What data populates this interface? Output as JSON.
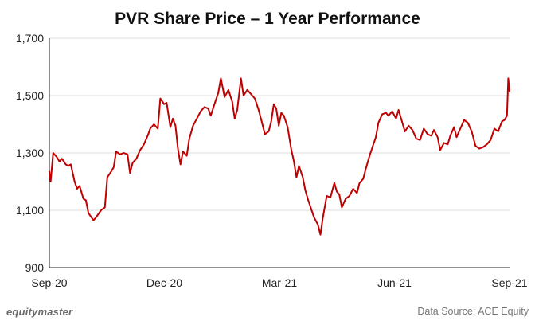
{
  "chart_data": {
    "type": "line",
    "title": "PVR Share Price – 1 Year Performance",
    "xlabel": "",
    "ylabel": "",
    "x_ticks": [
      "Sep-20",
      "Dec-20",
      "Mar-21",
      "Jun-21",
      "Sep-21"
    ],
    "y_ticks": [
      "900",
      "1,100",
      "1,300",
      "1,500",
      "1,700"
    ],
    "ylim": [
      900,
      1700
    ],
    "xlim": [
      "2020-09-01",
      "2021-09-01"
    ],
    "grid": "horizontal",
    "series": [
      {
        "color": "#c00000",
        "points": [
          [
            "2020-09-01",
            1235
          ],
          [
            "2020-09-02",
            1200
          ],
          [
            "2020-09-04",
            1300
          ],
          [
            "2020-09-07",
            1285
          ],
          [
            "2020-09-09",
            1270
          ],
          [
            "2020-09-11",
            1280
          ],
          [
            "2020-09-14",
            1260
          ],
          [
            "2020-09-16",
            1255
          ],
          [
            "2020-09-18",
            1260
          ],
          [
            "2020-09-21",
            1200
          ],
          [
            "2020-09-23",
            1175
          ],
          [
            "2020-09-25",
            1185
          ],
          [
            "2020-09-28",
            1140
          ],
          [
            "2020-09-30",
            1135
          ],
          [
            "2020-10-02",
            1090
          ],
          [
            "2020-10-06",
            1065
          ],
          [
            "2020-10-08",
            1075
          ],
          [
            "2020-10-12",
            1100
          ],
          [
            "2020-10-15",
            1110
          ],
          [
            "2020-10-17",
            1215
          ],
          [
            "2020-10-20",
            1235
          ],
          [
            "2020-10-22",
            1250
          ],
          [
            "2020-10-24",
            1305
          ],
          [
            "2020-10-27",
            1295
          ],
          [
            "2020-10-30",
            1300
          ],
          [
            "2020-11-02",
            1295
          ],
          [
            "2020-11-04",
            1230
          ],
          [
            "2020-11-06",
            1265
          ],
          [
            "2020-11-09",
            1280
          ],
          [
            "2020-11-12",
            1310
          ],
          [
            "2020-11-15",
            1330
          ],
          [
            "2020-11-18",
            1360
          ],
          [
            "2020-11-20",
            1385
          ],
          [
            "2020-11-23",
            1400
          ],
          [
            "2020-11-26",
            1385
          ],
          [
            "2020-11-28",
            1490
          ],
          [
            "2020-12-01",
            1470
          ],
          [
            "2020-12-03",
            1475
          ],
          [
            "2020-12-06",
            1390
          ],
          [
            "2020-12-08",
            1420
          ],
          [
            "2020-12-10",
            1395
          ],
          [
            "2020-12-12",
            1315
          ],
          [
            "2020-12-14",
            1260
          ],
          [
            "2020-12-16",
            1305
          ],
          [
            "2020-12-19",
            1290
          ],
          [
            "2020-12-21",
            1350
          ],
          [
            "2020-12-24",
            1395
          ],
          [
            "2020-12-27",
            1420
          ],
          [
            "2020-12-30",
            1445
          ],
          [
            "2021-01-02",
            1460
          ],
          [
            "2021-01-05",
            1455
          ],
          [
            "2021-01-07",
            1430
          ],
          [
            "2021-01-10",
            1470
          ],
          [
            "2021-01-13",
            1510
          ],
          [
            "2021-01-15",
            1560
          ],
          [
            "2021-01-18",
            1495
          ],
          [
            "2021-01-21",
            1520
          ],
          [
            "2021-01-24",
            1480
          ],
          [
            "2021-01-26",
            1420
          ],
          [
            "2021-01-28",
            1450
          ],
          [
            "2021-01-31",
            1560
          ],
          [
            "2021-02-02",
            1500
          ],
          [
            "2021-02-05",
            1520
          ],
          [
            "2021-02-08",
            1505
          ],
          [
            "2021-02-11",
            1490
          ],
          [
            "2021-02-14",
            1450
          ],
          [
            "2021-02-17",
            1400
          ],
          [
            "2021-02-19",
            1365
          ],
          [
            "2021-02-22",
            1375
          ],
          [
            "2021-02-24",
            1410
          ],
          [
            "2021-02-26",
            1470
          ],
          [
            "2021-02-28",
            1455
          ],
          [
            "2021-03-02",
            1395
          ],
          [
            "2021-03-04",
            1440
          ],
          [
            "2021-03-06",
            1430
          ],
          [
            "2021-03-09",
            1390
          ],
          [
            "2021-03-12",
            1310
          ],
          [
            "2021-03-14",
            1270
          ],
          [
            "2021-03-16",
            1215
          ],
          [
            "2021-03-18",
            1255
          ],
          [
            "2021-03-21",
            1215
          ],
          [
            "2021-03-23",
            1170
          ],
          [
            "2021-03-25",
            1140
          ],
          [
            "2021-03-28",
            1100
          ],
          [
            "2021-03-30",
            1075
          ],
          [
            "2021-04-02",
            1050
          ],
          [
            "2021-04-04",
            1015
          ],
          [
            "2021-04-06",
            1075
          ],
          [
            "2021-04-09",
            1150
          ],
          [
            "2021-04-12",
            1145
          ],
          [
            "2021-04-15",
            1195
          ],
          [
            "2021-04-17",
            1165
          ],
          [
            "2021-04-19",
            1155
          ],
          [
            "2021-04-21",
            1110
          ],
          [
            "2021-04-24",
            1140
          ],
          [
            "2021-04-27",
            1150
          ],
          [
            "2021-04-30",
            1175
          ],
          [
            "2021-05-03",
            1160
          ],
          [
            "2021-05-05",
            1195
          ],
          [
            "2021-05-08",
            1210
          ],
          [
            "2021-05-10",
            1245
          ],
          [
            "2021-05-13",
            1290
          ],
          [
            "2021-05-16",
            1330
          ],
          [
            "2021-05-18",
            1355
          ],
          [
            "2021-05-20",
            1405
          ],
          [
            "2021-05-23",
            1435
          ],
          [
            "2021-05-26",
            1440
          ],
          [
            "2021-05-28",
            1430
          ],
          [
            "2021-05-31",
            1445
          ],
          [
            "2021-06-03",
            1420
          ],
          [
            "2021-06-05",
            1450
          ],
          [
            "2021-06-08",
            1405
          ],
          [
            "2021-06-10",
            1375
          ],
          [
            "2021-06-13",
            1395
          ],
          [
            "2021-06-16",
            1380
          ],
          [
            "2021-06-19",
            1350
          ],
          [
            "2021-06-22",
            1345
          ],
          [
            "2021-06-25",
            1385
          ],
          [
            "2021-06-28",
            1365
          ],
          [
            "2021-07-01",
            1360
          ],
          [
            "2021-07-03",
            1380
          ],
          [
            "2021-07-06",
            1355
          ],
          [
            "2021-07-08",
            1310
          ],
          [
            "2021-07-11",
            1335
          ],
          [
            "2021-07-14",
            1330
          ],
          [
            "2021-07-16",
            1360
          ],
          [
            "2021-07-19",
            1390
          ],
          [
            "2021-07-21",
            1355
          ],
          [
            "2021-07-24",
            1385
          ],
          [
            "2021-07-27",
            1415
          ],
          [
            "2021-07-30",
            1405
          ],
          [
            "2021-08-02",
            1375
          ],
          [
            "2021-08-05",
            1325
          ],
          [
            "2021-08-08",
            1315
          ],
          [
            "2021-08-11",
            1320
          ],
          [
            "2021-08-14",
            1330
          ],
          [
            "2021-08-17",
            1345
          ],
          [
            "2021-08-20",
            1385
          ],
          [
            "2021-08-23",
            1375
          ],
          [
            "2021-08-26",
            1410
          ],
          [
            "2021-08-28",
            1415
          ],
          [
            "2021-08-30",
            1430
          ],
          [
            "2021-08-31",
            1560
          ],
          [
            "2021-09-01",
            1515
          ]
        ]
      }
    ]
  },
  "branding": {
    "logo_text": "equitymaster",
    "source_text": "Data Source: ACE Equity"
  }
}
